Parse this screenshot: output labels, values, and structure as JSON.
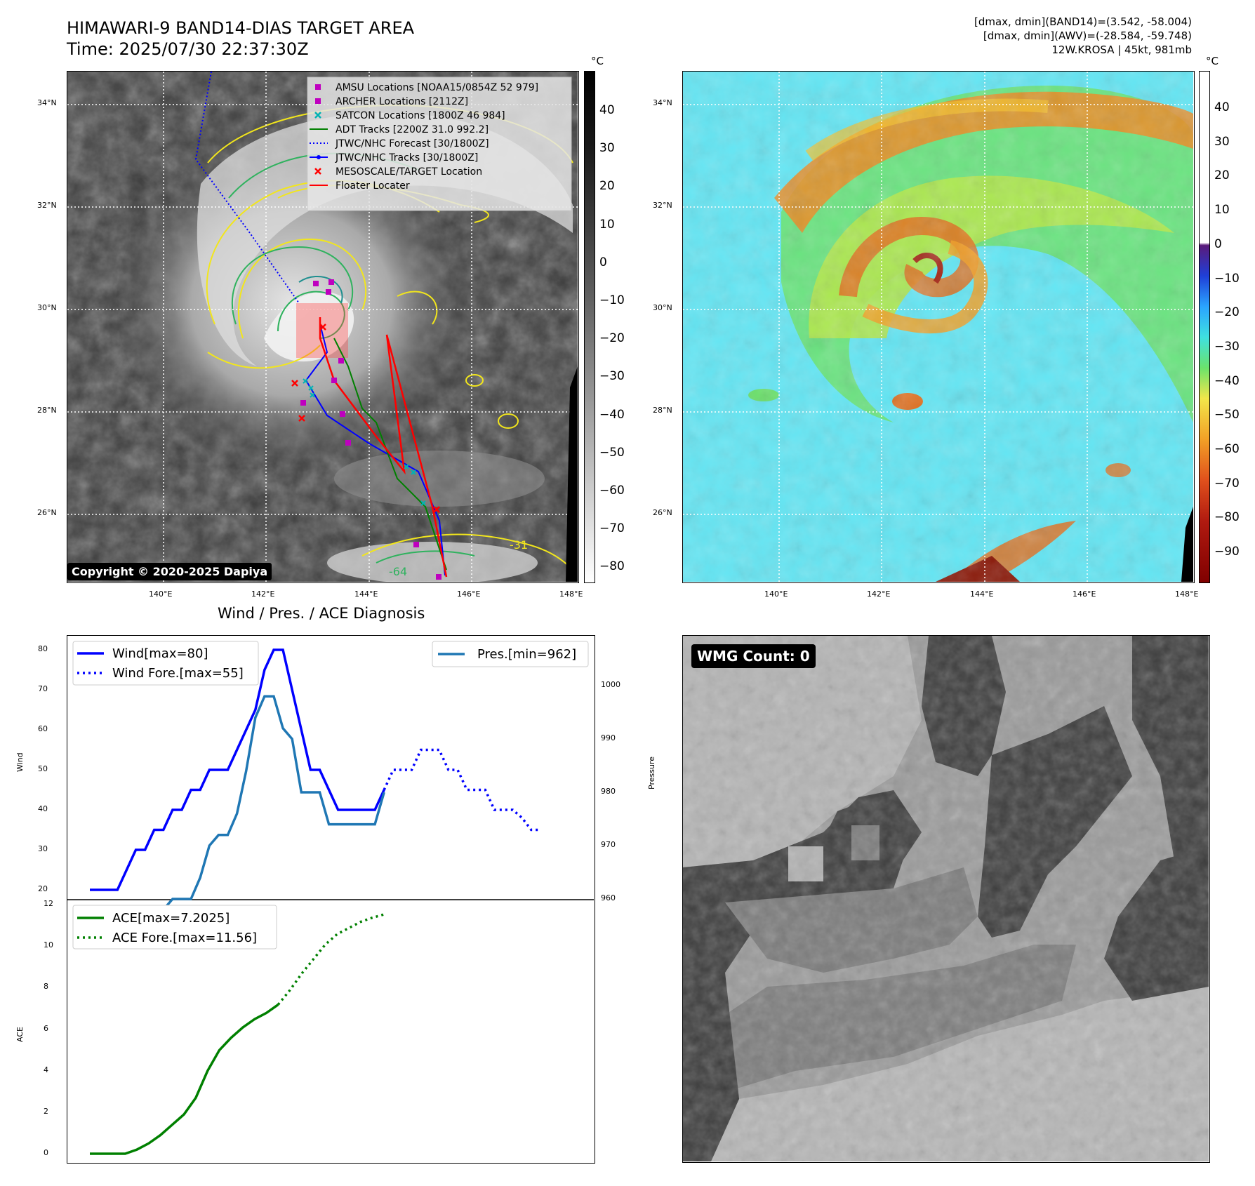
{
  "header": {
    "title_line1": "HIMAWARI-9 BAND14-DIAS TARGET AREA",
    "title_line2": "Time: 2025/07/30 22:37:30Z",
    "info_line1": "[dmax, dmin](BAND14)=(3.542, -58.004)",
    "info_line2": "[dmax, dmin](AWV)=(-28.584, -59.748)",
    "info_line3": "12W.KROSA | 45kt, 981mb"
  },
  "maps": {
    "lat_labels": [
      "34°N",
      "32°N",
      "30°N",
      "28°N",
      "26°N"
    ],
    "lon_labels": [
      "140°E",
      "142°E",
      "144°E",
      "146°E",
      "148°E"
    ],
    "copyright": "Copyright © 2020-2025 Dapiya",
    "contour_labels": [
      "-31",
      "-64",
      "-31",
      "-64"
    ],
    "legend": [
      {
        "label": "AMSU Locations [NOAA15/0854Z 52 979]",
        "color": "#bf00bf",
        "marker": "square"
      },
      {
        "label": "ARCHER Locations [2112Z]",
        "color": "#bf00bf",
        "marker": "square"
      },
      {
        "label": "SATCON Locations [1800Z 46 984]",
        "color": "#00b3b3",
        "marker": "x"
      },
      {
        "label": "ADT Tracks [2200Z 31.0 992.2]",
        "color": "#008000",
        "marker": "line"
      },
      {
        "label": "JTWC/NHC Forecast [30/1800Z]",
        "color": "#0000ff",
        "marker": "dotted"
      },
      {
        "label": "JTWC/NHC Tracks [30/1800Z]",
        "color": "#0000ff",
        "marker": "line-dot"
      },
      {
        "label": "MESOSCALE/TARGET Location",
        "color": "#ff0000",
        "marker": "x"
      },
      {
        "label": "Floater Locater",
        "color": "#ff0000",
        "marker": "line"
      }
    ],
    "cbar1": {
      "unit": "°C",
      "ticks": [
        "40",
        "30",
        "20",
        "10",
        "0",
        "−10",
        "−20",
        "−30",
        "−40",
        "−50",
        "−60",
        "−70",
        "−80"
      ]
    },
    "cbar2": {
      "unit": "°C",
      "ticks": [
        "40",
        "30",
        "20",
        "10",
        "0",
        "−10",
        "−20",
        "−30",
        "−40",
        "−50",
        "−60",
        "−70",
        "−80",
        "−90"
      ]
    }
  },
  "diag": {
    "title": "Wind / Pres. / ACE Diagnosis",
    "wind_ylabel": "Wind",
    "pres_ylabel": "Pressure",
    "ace_ylabel": "ACE",
    "wind_ticks": [
      "80",
      "70",
      "60",
      "50",
      "40",
      "30",
      "20"
    ],
    "pres_ticks": [
      "1000",
      "990",
      "980",
      "970",
      "960"
    ],
    "ace_ticks": [
      "12",
      "10",
      "8",
      "6",
      "4",
      "2",
      "0"
    ],
    "legend_wind": "Wind[max=80]",
    "legend_wind_fore": "Wind Fore.[max=55]",
    "legend_pres": "Pres.[min=962]",
    "legend_ace": "ACE[max=7.2025]",
    "legend_ace_fore": "ACE Fore.[max=11.56]",
    "wmg_label": "WMG Count: 0"
  },
  "chart_data": [
    {
      "type": "line",
      "title": "Wind / Pres. / ACE Diagnosis",
      "ylabel": "Wind",
      "ylim": [
        18,
        82
      ],
      "x": [
        0,
        1,
        2,
        3,
        4,
        5,
        6,
        7,
        8,
        9,
        10,
        11,
        12,
        13,
        14,
        15,
        16,
        17,
        18,
        19,
        20,
        21,
        22,
        23,
        24,
        25,
        26,
        27,
        28,
        29,
        30,
        31,
        32,
        33,
        34,
        35,
        36,
        37,
        38,
        39,
        40,
        41,
        42,
        43,
        44,
        45,
        46,
        47,
        48,
        49
      ],
      "series": [
        {
          "name": "Wind[max=80]",
          "values": [
            20,
            20,
            20,
            20,
            25,
            30,
            30,
            35,
            35,
            40,
            40,
            45,
            45,
            50,
            50,
            50,
            55,
            60,
            65,
            75,
            80,
            80,
            70,
            60,
            50,
            50,
            45,
            40,
            40,
            40,
            40,
            40,
            45,
            null,
            null,
            null,
            null,
            null,
            null,
            null,
            null,
            null,
            null,
            null,
            null,
            null,
            null,
            null,
            null,
            null
          ]
        },
        {
          "name": "Wind Fore.[max=55]",
          "values": [
            null,
            null,
            null,
            null,
            null,
            null,
            null,
            null,
            null,
            null,
            null,
            null,
            null,
            null,
            null,
            null,
            null,
            null,
            null,
            null,
            null,
            null,
            null,
            null,
            null,
            null,
            null,
            null,
            null,
            null,
            null,
            null,
            45,
            50,
            50,
            50,
            55,
            55,
            55,
            50,
            50,
            45,
            45,
            45,
            40,
            40,
            40,
            38,
            35,
            35
          ]
        }
      ]
    },
    {
      "type": "line",
      "ylabel": "Pressure",
      "ylim": [
        960,
        1008
      ],
      "x": [
        0,
        1,
        2,
        3,
        4,
        5,
        6,
        7,
        8,
        9,
        10,
        11,
        12,
        13,
        14,
        15,
        16,
        17,
        18,
        19,
        20,
        21,
        22,
        23,
        24,
        25,
        26,
        27,
        28,
        29,
        30,
        31,
        32
      ],
      "series": [
        {
          "name": "Pres.[min=962]",
          "values": [
            1008,
            1008,
            1008,
            1006,
            1006,
            1004,
            1004,
            1002,
            1002,
            1000,
            1000,
            1000,
            996,
            990,
            988,
            988,
            984,
            976,
            966,
            962,
            962,
            968,
            970,
            980,
            980,
            980,
            986,
            986,
            986,
            986,
            986,
            986,
            980
          ]
        }
      ]
    },
    {
      "type": "line",
      "ylabel": "ACE",
      "ylim": [
        -0.5,
        12
      ],
      "x": [
        0,
        2,
        4,
        6,
        8,
        10,
        12,
        14,
        16,
        18,
        20,
        22,
        24,
        26,
        28,
        30,
        32,
        34,
        36,
        38,
        40,
        42,
        44,
        46,
        48,
        50
      ],
      "series": [
        {
          "name": "ACE[max=7.2025]",
          "values": [
            0,
            0,
            0,
            0,
            0.2,
            0.5,
            0.9,
            1.4,
            1.9,
            2.7,
            4.0,
            5.0,
            5.6,
            6.1,
            6.5,
            6.8,
            7.2025,
            null,
            null,
            null,
            null,
            null,
            null,
            null,
            null,
            null
          ]
        },
        {
          "name": "ACE Fore.[max=11.56]",
          "values": [
            null,
            null,
            null,
            null,
            null,
            null,
            null,
            null,
            null,
            null,
            null,
            null,
            null,
            null,
            null,
            null,
            7.2025,
            7.9,
            8.7,
            9.4,
            10.1,
            10.6,
            10.9,
            11.2,
            11.4,
            11.56
          ]
        }
      ]
    }
  ]
}
